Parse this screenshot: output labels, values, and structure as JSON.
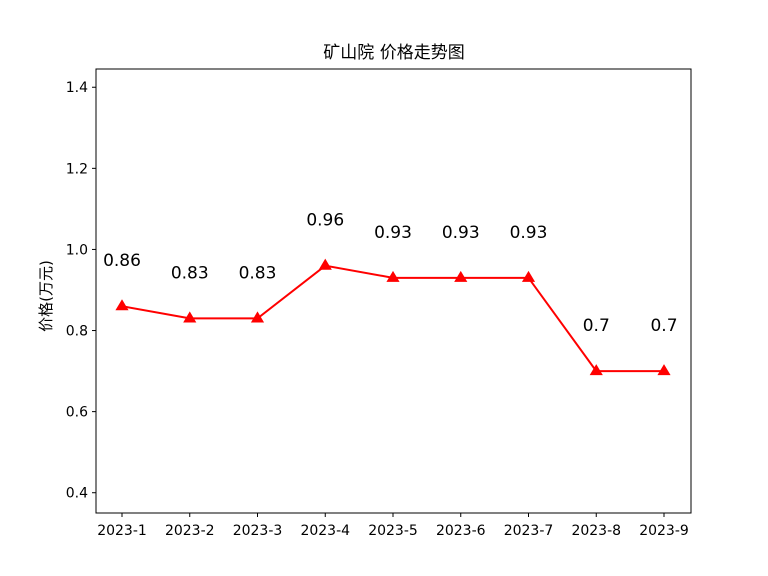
{
  "chart_data": {
    "type": "line",
    "title": "矿山院 价格走势图",
    "xlabel": "",
    "ylabel": "价格(万元)",
    "categories": [
      "2023-1",
      "2023-2",
      "2023-3",
      "2023-4",
      "2023-5",
      "2023-6",
      "2023-7",
      "2023-8",
      "2023-9"
    ],
    "series": [
      {
        "values": [
          0.86,
          0.83,
          0.83,
          0.96,
          0.93,
          0.93,
          0.93,
          0.7,
          0.7
        ],
        "data_labels": [
          "0.86",
          "0.83",
          "0.83",
          "0.96",
          "0.93",
          "0.93",
          "0.93",
          "0.7",
          "0.7"
        ],
        "color": "#ff0000",
        "marker": "triangle"
      }
    ],
    "ylim": [
      0.35,
      1.445
    ],
    "yticks": [
      0.4,
      0.6,
      0.8,
      1.0,
      1.2,
      1.4
    ],
    "ytick_labels": [
      "0.4",
      "0.6",
      "0.8",
      "1.0",
      "1.2",
      "1.4"
    ],
    "grid": false,
    "legend": "none"
  }
}
